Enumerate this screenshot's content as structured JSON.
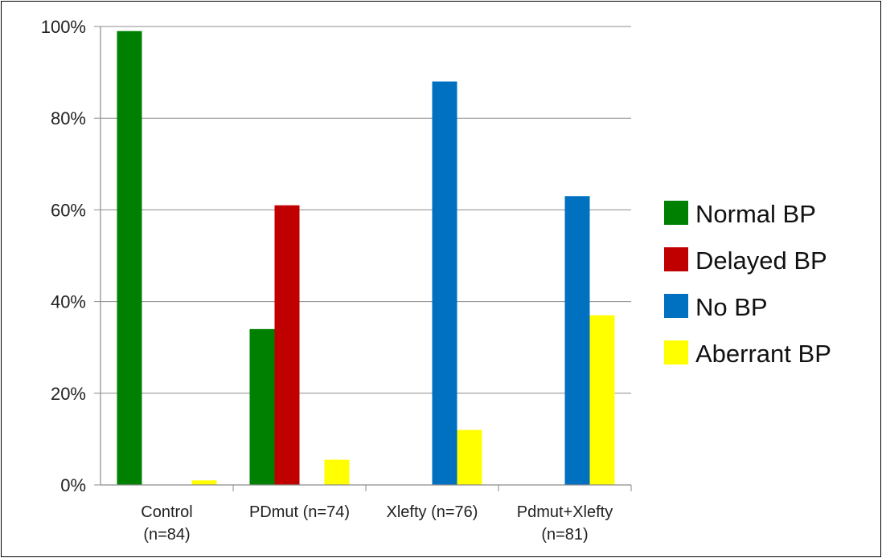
{
  "chart_data": {
    "type": "bar",
    "categories": [
      [
        "Control",
        "(n=84)"
      ],
      [
        "PDmut (n=74)"
      ],
      [
        "Xlefty (n=76)"
      ],
      [
        "Pdmut+Xlefty",
        "(n=81)"
      ]
    ],
    "series": [
      {
        "name": "Normal BP",
        "color": "#008000",
        "values": [
          99,
          34,
          0,
          0
        ]
      },
      {
        "name": "Delayed BP",
        "color": "#c00000",
        "values": [
          0,
          61,
          0,
          0
        ]
      },
      {
        "name": "No BP",
        "color": "#0070c0",
        "values": [
          0,
          0,
          88,
          63
        ]
      },
      {
        "name": "Aberrant BP",
        "color": "#ffff00",
        "values": [
          1,
          5.5,
          12,
          37
        ]
      }
    ],
    "ylim": [
      0,
      100
    ],
    "yticks": [
      "0%",
      "20%",
      "40%",
      "60%",
      "80%",
      "100%"
    ],
    "ytick_values": [
      0,
      20,
      40,
      60,
      80,
      100
    ],
    "grid": true,
    "legend_position": "right"
  }
}
